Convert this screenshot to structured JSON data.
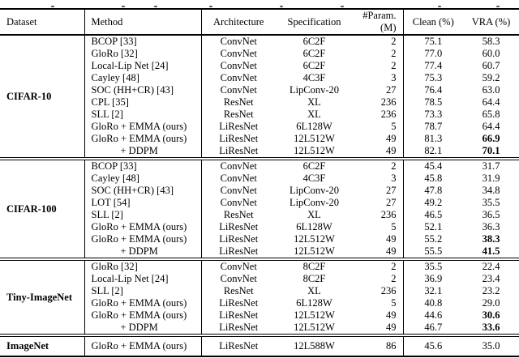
{
  "page": {
    "background": "#ffffff",
    "text_color": "#000000",
    "rule_color": "#000000",
    "caption_note": "cropped caption line, only descender fragments visible"
  },
  "table": {
    "headers": [
      "Dataset",
      "Method",
      "Architecture",
      "Specification",
      "#Param. (M)",
      "Clean (%)",
      "VRA (%)"
    ],
    "sections": [
      {
        "dataset": "CIFAR-10",
        "rows": [
          {
            "method": "BCOP [33]",
            "architecture": "ConvNet",
            "specification": "6C2F",
            "params": "2",
            "clean": "75.1",
            "vra": "58.3",
            "vra_bold": false,
            "indent": false
          },
          {
            "method": "GloRo [32]",
            "architecture": "ConvNet",
            "specification": "6C2F",
            "params": "2",
            "clean": "77.0",
            "vra": "60.0",
            "vra_bold": false,
            "indent": false
          },
          {
            "method": "Local-Lip Net [24]",
            "architecture": "ConvNet",
            "specification": "6C2F",
            "params": "2",
            "clean": "77.4",
            "vra": "60.7",
            "vra_bold": false,
            "indent": false
          },
          {
            "method": "Cayley [48]",
            "architecture": "ConvNet",
            "specification": "4C3F",
            "params": "3",
            "clean": "75.3",
            "vra": "59.2",
            "vra_bold": false,
            "indent": false
          },
          {
            "method": "SOC (HH+CR) [43]",
            "architecture": "ConvNet",
            "specification": "LipConv-20",
            "params": "27",
            "clean": "76.4",
            "vra": "63.0",
            "vra_bold": false,
            "indent": false
          },
          {
            "method": "CPL [35]",
            "architecture": "ResNet",
            "specification": "XL",
            "params": "236",
            "clean": "78.5",
            "vra": "64.4",
            "vra_bold": false,
            "indent": false
          },
          {
            "method": "SLL [2]",
            "architecture": "ResNet",
            "specification": "XL",
            "params": "236",
            "clean": "73.3",
            "vra": "65.8",
            "vra_bold": false,
            "indent": false
          },
          {
            "method": "GloRo + EMMA (ours)",
            "architecture": "LiResNet",
            "specification": "6L128W",
            "params": "5",
            "clean": "78.7",
            "vra": "64.4",
            "vra_bold": false,
            "indent": false
          },
          {
            "method": "GloRo + EMMA (ours)",
            "architecture": "LiResNet",
            "specification": "12L512W",
            "params": "49",
            "clean": "81.3",
            "vra": "66.9",
            "vra_bold": true,
            "indent": false
          },
          {
            "method": "+ DDPM",
            "architecture": "LiResNet",
            "specification": "12L512W",
            "params": "49",
            "clean": "82.1",
            "vra": "70.1",
            "vra_bold": true,
            "indent": true
          }
        ]
      },
      {
        "dataset": "CIFAR-100",
        "rows": [
          {
            "method": "BCOP [33]",
            "architecture": "ConvNet",
            "specification": "6C2F",
            "params": "2",
            "clean": "45.4",
            "vra": "31.7",
            "vra_bold": false,
            "indent": false
          },
          {
            "method": "Cayley [48]",
            "architecture": "ConvNet",
            "specification": "4C3F",
            "params": "3",
            "clean": "45.8",
            "vra": "31.9",
            "vra_bold": false,
            "indent": false
          },
          {
            "method": "SOC (HH+CR) [43]",
            "architecture": "ConvNet",
            "specification": "LipConv-20",
            "params": "27",
            "clean": "47.8",
            "vra": "34.8",
            "vra_bold": false,
            "indent": false
          },
          {
            "method": "LOT [54]",
            "architecture": "ConvNet",
            "specification": "LipConv-20",
            "params": "27",
            "clean": "49.2",
            "vra": "35.5",
            "vra_bold": false,
            "indent": false
          },
          {
            "method": "SLL [2]",
            "architecture": "ResNet",
            "specification": "XL",
            "params": "236",
            "clean": "46.5",
            "vra": "36.5",
            "vra_bold": false,
            "indent": false
          },
          {
            "method": "GloRo + EMMA (ours)",
            "architecture": "LiResNet",
            "specification": "6L128W",
            "params": "5",
            "clean": "52.1",
            "vra": "36.3",
            "vra_bold": false,
            "indent": false
          },
          {
            "method": "GloRo + EMMA (ours)",
            "architecture": "LiResNet",
            "specification": "12L512W",
            "params": "49",
            "clean": "55.2",
            "vra": "38.3",
            "vra_bold": true,
            "indent": false
          },
          {
            "method": "+ DDPM",
            "architecture": "LiResNet",
            "specification": "12L512W",
            "params": "49",
            "clean": "55.5",
            "vra": "41.5",
            "vra_bold": true,
            "indent": true
          }
        ]
      },
      {
        "dataset": "Tiny-ImageNet",
        "rows": [
          {
            "method": "GloRo [32]",
            "architecture": "ConvNet",
            "specification": "8C2F",
            "params": "2",
            "clean": "35.5",
            "vra": "22.4",
            "vra_bold": false,
            "indent": false
          },
          {
            "method": "Local-Lip Net [24]",
            "architecture": "ConvNet",
            "specification": "8C2F",
            "params": "2",
            "clean": "36.9",
            "vra": "23.4",
            "vra_bold": false,
            "indent": false
          },
          {
            "method": "SLL [2]",
            "architecture": "ResNet",
            "specification": "XL",
            "params": "236",
            "clean": "32.1",
            "vra": "23.2",
            "vra_bold": false,
            "indent": false
          },
          {
            "method": "GloRo + EMMA (ours)",
            "architecture": "LiResNet",
            "specification": "6L128W",
            "params": "5",
            "clean": "40.8",
            "vra": "29.0",
            "vra_bold": false,
            "indent": false
          },
          {
            "method": "GloRo + EMMA (ours)",
            "architecture": "LiResNet",
            "specification": "12L512W",
            "params": "49",
            "clean": "44.6",
            "vra": "30.6",
            "vra_bold": true,
            "indent": false
          },
          {
            "method": "+ DDPM",
            "architecture": "LiResNet",
            "specification": "12L512W",
            "params": "49",
            "clean": "46.7",
            "vra": "33.6",
            "vra_bold": true,
            "indent": true
          }
        ]
      },
      {
        "dataset": "ImageNet",
        "rows": [
          {
            "method": "GloRo + EMMA (ours)",
            "architecture": "LiResNet",
            "specification": "12L588W",
            "params": "86",
            "clean": "45.6",
            "vra": "35.0",
            "vra_bold": false,
            "indent": false
          }
        ]
      }
    ]
  }
}
